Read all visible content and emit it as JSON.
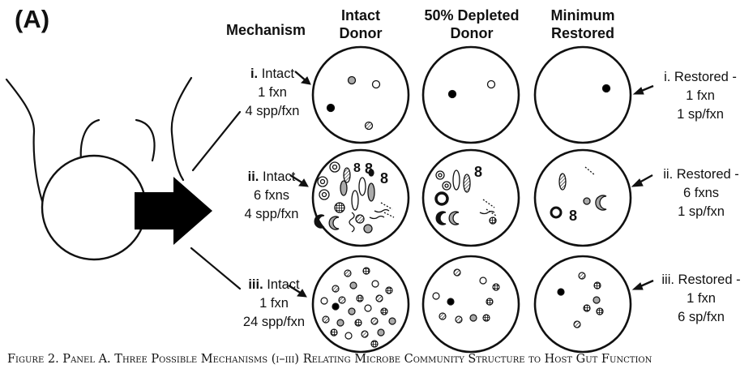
{
  "panel_label": "(A)",
  "columns": {
    "mechanism": "Mechanism",
    "intact": [
      "Intact",
      "Donor"
    ],
    "depleted": [
      "50% Depleted",
      "Donor"
    ],
    "restored": [
      "Minimum",
      "Restored"
    ]
  },
  "rows": [
    {
      "left": {
        "roman": "i.",
        "title": "Intact",
        "line2": "1 fxn",
        "line3": "4 spp/fxn"
      },
      "right": {
        "title": "i. Restored -",
        "line2": "1 fxn",
        "line3": "1 sp/fxn"
      }
    },
    {
      "left": {
        "roman": "ii.",
        "title": "Intact",
        "line2": "6 fxns",
        "line3": "4 spp/fxn"
      },
      "right": {
        "title": "ii. Restored -",
        "line2": "6 fxns",
        "line3": "1 sp/fxn"
      }
    },
    {
      "left": {
        "roman": "iii.",
        "title": "Intact",
        "line2": "1 fxn",
        "line3": "24 spp/fxn"
      },
      "right": {
        "title": "iii. Restored -",
        "line2": "1 fxn",
        "line3": "6 sp/fxn"
      }
    }
  ],
  "caption": "Figure 2. Panel A. Three Possible Mechanisms (i–iii) Relating Microbe Community Structure to Host Gut Function"
}
